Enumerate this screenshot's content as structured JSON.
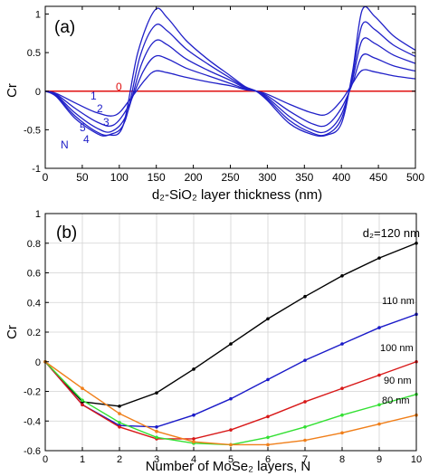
{
  "colors": {
    "panel_a_curves": "#2020c8",
    "panel_a_zero_line": "#e01010",
    "s120": "#000000",
    "s110": "#1a1ac8",
    "s100": "#d81818",
    "s90": "#33e033",
    "s80": "#f07f1a"
  },
  "chart_data": [
    {
      "type": "line",
      "panel_label": "(a)",
      "xlabel": "d₂-SiO₂ layer thickness (nm)",
      "ylabel": "Cr",
      "xlim": [
        0,
        500
      ],
      "ylim": [
        -1,
        1.1
      ],
      "xticks": [
        0,
        50,
        100,
        150,
        200,
        250,
        300,
        350,
        400,
        450,
        500
      ],
      "yticks": [
        -1,
        -0.5,
        0,
        0.5,
        1
      ],
      "annotations": {
        "n_labels": [
          "0",
          "1",
          "2",
          "3",
          "4",
          "5"
        ],
        "n_axis_label": "N"
      },
      "series": [
        {
          "values": [
            [
              0,
              0
            ],
            [
              500,
              0
            ]
          ]
        },
        {
          "values": [
            [
              0,
              0
            ],
            [
              15,
              -0.03
            ],
            [
              40,
              -0.15
            ],
            [
              70,
              -0.28
            ],
            [
              95,
              -0.31
            ],
            [
              115,
              -0.1
            ],
            [
              135,
              0.15
            ],
            [
              148,
              0.26
            ],
            [
              165,
              0.24
            ],
            [
              190,
              0.18
            ],
            [
              220,
              0.12
            ],
            [
              250,
              0.07
            ],
            [
              270,
              0.02
            ],
            [
              285,
              0
            ],
            [
              300,
              -0.04
            ],
            [
              330,
              -0.17
            ],
            [
              360,
              -0.28
            ],
            [
              380,
              -0.3
            ],
            [
              400,
              -0.12
            ],
            [
              415,
              0.1
            ],
            [
              428,
              0.27
            ],
            [
              445,
              0.25
            ],
            [
              470,
              0.2
            ],
            [
              500,
              0.16
            ]
          ]
        },
        {
          "values": [
            [
              0,
              0
            ],
            [
              15,
              -0.04
            ],
            [
              40,
              -0.22
            ],
            [
              70,
              -0.4
            ],
            [
              92,
              -0.44
            ],
            [
              112,
              -0.2
            ],
            [
              132,
              0.25
            ],
            [
              148,
              0.45
            ],
            [
              165,
              0.42
            ],
            [
              190,
              0.3
            ],
            [
              220,
              0.2
            ],
            [
              250,
              0.1
            ],
            [
              270,
              0.03
            ],
            [
              285,
              0
            ],
            [
              300,
              -0.06
            ],
            [
              330,
              -0.26
            ],
            [
              360,
              -0.42
            ],
            [
              380,
              -0.44
            ],
            [
              400,
              -0.22
            ],
            [
              415,
              0.1
            ],
            [
              428,
              0.46
            ],
            [
              445,
              0.43
            ],
            [
              470,
              0.33
            ],
            [
              500,
              0.26
            ]
          ]
        },
        {
          "values": [
            [
              0,
              0
            ],
            [
              15,
              -0.05
            ],
            [
              40,
              -0.28
            ],
            [
              70,
              -0.48
            ],
            [
              90,
              -0.52
            ],
            [
              110,
              -0.3
            ],
            [
              130,
              0.35
            ],
            [
              148,
              0.65
            ],
            [
              165,
              0.6
            ],
            [
              190,
              0.42
            ],
            [
              220,
              0.27
            ],
            [
              250,
              0.14
            ],
            [
              270,
              0.04
            ],
            [
              285,
              0
            ],
            [
              300,
              -0.08
            ],
            [
              330,
              -0.33
            ],
            [
              360,
              -0.5
            ],
            [
              380,
              -0.52
            ],
            [
              400,
              -0.3
            ],
            [
              415,
              0.15
            ],
            [
              428,
              0.66
            ],
            [
              445,
              0.62
            ],
            [
              470,
              0.47
            ],
            [
              500,
              0.36
            ]
          ]
        },
        {
          "values": [
            [
              0,
              0
            ],
            [
              15,
              -0.06
            ],
            [
              40,
              -0.32
            ],
            [
              70,
              -0.53
            ],
            [
              88,
              -0.56
            ],
            [
              108,
              -0.38
            ],
            [
              128,
              0.45
            ],
            [
              148,
              0.85
            ],
            [
              165,
              0.78
            ],
            [
              190,
              0.55
            ],
            [
              220,
              0.35
            ],
            [
              250,
              0.17
            ],
            [
              270,
              0.05
            ],
            [
              285,
              0
            ],
            [
              300,
              -0.1
            ],
            [
              330,
              -0.38
            ],
            [
              360,
              -0.54
            ],
            [
              380,
              -0.56
            ],
            [
              400,
              -0.36
            ],
            [
              415,
              0.2
            ],
            [
              428,
              0.86
            ],
            [
              445,
              0.8
            ],
            [
              470,
              0.6
            ],
            [
              500,
              0.45
            ]
          ]
        },
        {
          "values": [
            [
              0,
              0
            ],
            [
              15,
              -0.07
            ],
            [
              40,
              -0.35
            ],
            [
              70,
              -0.55
            ],
            [
              85,
              -0.57
            ],
            [
              105,
              -0.45
            ],
            [
              125,
              0.5
            ],
            [
              148,
              1.05
            ],
            [
              165,
              0.95
            ],
            [
              190,
              0.66
            ],
            [
              220,
              0.41
            ],
            [
              250,
              0.2
            ],
            [
              270,
              0.06
            ],
            [
              285,
              0
            ],
            [
              300,
              -0.12
            ],
            [
              330,
              -0.42
            ],
            [
              360,
              -0.56
            ],
            [
              380,
              -0.57
            ],
            [
              400,
              -0.42
            ],
            [
              415,
              0.25
            ],
            [
              428,
              1.05
            ],
            [
              445,
              0.97
            ],
            [
              470,
              0.72
            ],
            [
              500,
              0.53
            ]
          ]
        }
      ]
    },
    {
      "type": "line",
      "panel_label": "(b)",
      "xlabel": "Number of MoSe₂ layers, N",
      "ylabel": "Cr",
      "xlim": [
        0,
        10
      ],
      "ylim": [
        -0.6,
        1
      ],
      "xticks": [
        0,
        1,
        2,
        3,
        4,
        5,
        6,
        7,
        8,
        9,
        10
      ],
      "yticks": [
        -0.6,
        -0.4,
        -0.2,
        0,
        0.2,
        0.4,
        0.6,
        0.8,
        1
      ],
      "x": [
        0,
        1,
        2,
        3,
        4,
        5,
        6,
        7,
        8,
        9,
        10
      ],
      "series": [
        {
          "name": "d₂=120 nm",
          "values": [
            0,
            -0.27,
            -0.3,
            -0.21,
            -0.05,
            0.12,
            0.29,
            0.44,
            0.58,
            0.7,
            0.8
          ]
        },
        {
          "name": "110 nm",
          "values": [
            0,
            -0.29,
            -0.43,
            -0.44,
            -0.36,
            -0.25,
            -0.12,
            0.01,
            0.12,
            0.23,
            0.32
          ]
        },
        {
          "name": "100 nm",
          "values": [
            0,
            -0.29,
            -0.44,
            -0.52,
            -0.52,
            -0.46,
            -0.37,
            -0.27,
            -0.18,
            -0.09,
            0
          ]
        },
        {
          "name": "90 nm",
          "values": [
            0,
            -0.26,
            -0.41,
            -0.51,
            -0.55,
            -0.56,
            -0.51,
            -0.44,
            -0.36,
            -0.29,
            -0.22
          ]
        },
        {
          "name": "80 nm",
          "values": [
            0,
            -0.18,
            -0.35,
            -0.47,
            -0.54,
            -0.56,
            -0.56,
            -0.53,
            -0.48,
            -0.42,
            -0.36
          ]
        }
      ]
    }
  ]
}
